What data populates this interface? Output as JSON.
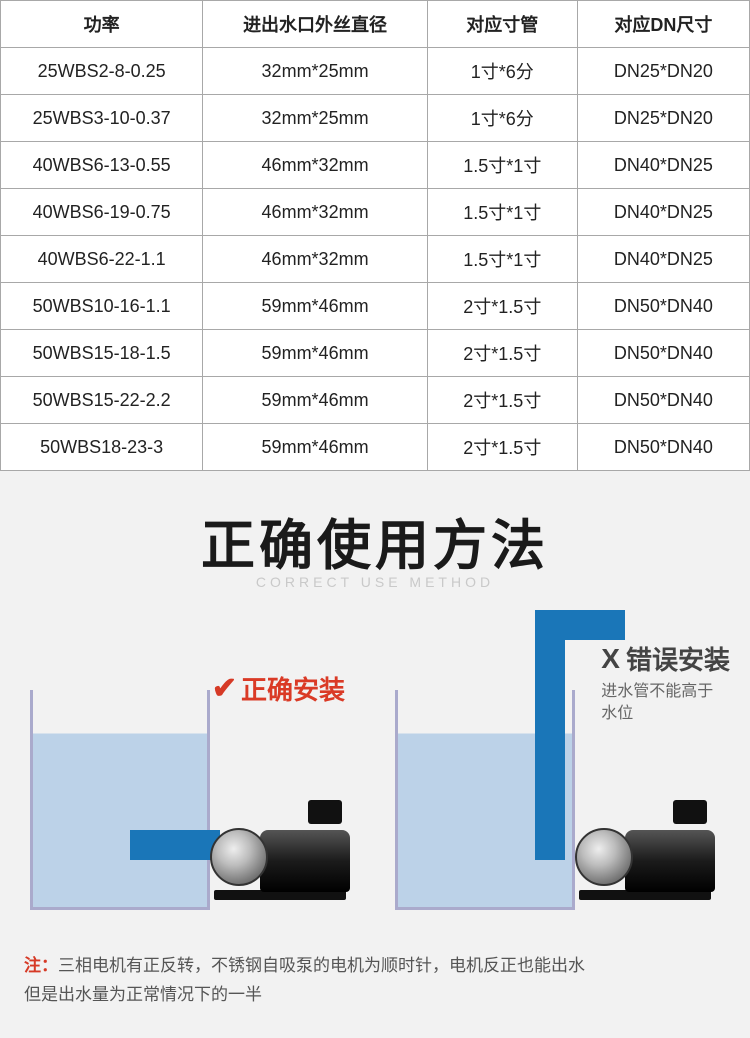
{
  "table": {
    "columns": [
      "功率",
      "进出水口外丝直径",
      "对应寸管",
      "对应DN尺寸"
    ],
    "column_widths_pct": [
      27,
      30,
      20,
      23
    ],
    "rows": [
      [
        "25WBS2-8-0.25",
        "32mm*25mm",
        "1寸*6分",
        "DN25*DN20"
      ],
      [
        "25WBS3-10-0.37",
        "32mm*25mm",
        "1寸*6分",
        "DN25*DN20"
      ],
      [
        "40WBS6-13-0.55",
        "46mm*32mm",
        "1.5寸*1寸",
        "DN40*DN25"
      ],
      [
        "40WBS6-19-0.75",
        "46mm*32mm",
        "1.5寸*1寸",
        "DN40*DN25"
      ],
      [
        "40WBS6-22-1.1",
        "46mm*32mm",
        "1.5寸*1寸",
        "DN40*DN25"
      ],
      [
        "50WBS10-16-1.1",
        "59mm*46mm",
        "2寸*1.5寸",
        "DN50*DN40"
      ],
      [
        "50WBS15-18-1.5",
        "59mm*46mm",
        "2寸*1.5寸",
        "DN50*DN40"
      ],
      [
        "50WBS15-22-2.2",
        "59mm*46mm",
        "2寸*1.5寸",
        "DN50*DN40"
      ],
      [
        "50WBS18-23-3",
        "59mm*46mm",
        "2寸*1.5寸",
        "DN50*DN40"
      ]
    ],
    "border_color": "#a8a8a8",
    "header_fontsize": 18,
    "cell_fontsize": 18,
    "text_color": "#222222"
  },
  "usage": {
    "title": "正确使用方法",
    "subtitle": "CORRECT USE METHOD",
    "title_color": "#1a1a1a",
    "title_fontsize": 54,
    "correct_label": "正确安装",
    "correct_color": "#da3a26",
    "wrong_label": "错误安装",
    "wrong_color": "#444444",
    "wrong_desc": "进水管不能高于\n水位",
    "water_color": "#bcd2e8",
    "pipe_color": "#1a76b8",
    "background_color": "#f2f2f2"
  },
  "note": {
    "label": "注：",
    "label_color": "#d63a26",
    "text": "三相电机有正反转，不锈钢自吸泵的电机为顺时针，电机反正也能出水\n但是出水量为正常情况下的一半",
    "text_color": "#555555",
    "fontsize": 17
  }
}
